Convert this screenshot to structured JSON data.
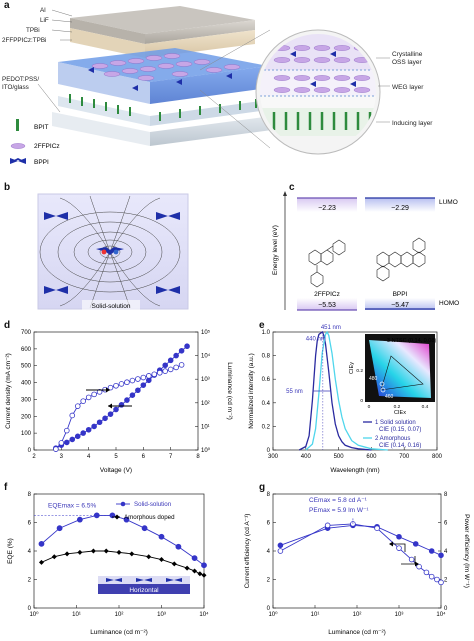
{
  "panels": {
    "a": {
      "letter": "a",
      "layers": [
        "Al",
        "LiF",
        "TPBi",
        "2FFPPICz:TPBi",
        "PEDOT:PSS/",
        "ITO/glass"
      ],
      "legend": [
        "BPIT",
        "2FFPICz",
        "BPPI"
      ],
      "zoom_labels": [
        "Crystalline",
        "OSS layer",
        "WEG layer",
        "Inducing layer"
      ]
    },
    "b": {
      "letter": "b",
      "label": "Solid-solution"
    },
    "c": {
      "letter": "c",
      "ylabel": "Energy level (eV)",
      "lumo_label": "LUMO",
      "homo_label": "HOMO",
      "left": {
        "lumo": "−2.23",
        "homo": "−5.53",
        "name": "2FFPICz"
      },
      "right": {
        "lumo": "−2.29",
        "homo": "−5.47",
        "name": "BPPI"
      }
    },
    "d": {
      "letter": "d"
    },
    "e": {
      "letter": "e"
    },
    "f": {
      "letter": "f"
    },
    "g": {
      "letter": "g"
    }
  },
  "chart_data": [
    {
      "id": "d",
      "type": "line",
      "xlabel": "Voltage (V)",
      "ylabel": "Current density (mA cm⁻²)",
      "y2label": "Luminance (cd m⁻²)",
      "xlim": [
        2,
        8
      ],
      "xticks": [
        "2",
        "3",
        "4",
        "5",
        "6",
        "7",
        "8"
      ],
      "ylim": [
        0,
        700
      ],
      "yticks": [
        "0",
        "100",
        "200",
        "300",
        "400",
        "500",
        "600",
        "700"
      ],
      "y2scale": "log",
      "y2lim": [
        1,
        100000
      ],
      "y2ticks": [
        "10⁰",
        "10¹",
        "10²",
        "10³",
        "10⁴",
        "10⁵"
      ],
      "series": [
        {
          "marker": "filled",
          "axis": "right",
          "x": [
            2.8,
            3.0,
            3.2,
            3.4,
            3.6,
            3.8,
            4.0,
            4.2,
            4.4,
            4.6,
            4.8,
            5.0,
            5.2,
            5.4,
            5.6,
            5.8,
            6.0,
            6.2,
            6.4,
            6.6,
            6.8,
            7.0,
            7.2,
            7.4,
            7.6
          ],
          "y": [
            1.2,
            1.6,
            2.1,
            2.8,
            3.8,
            5.2,
            7.2,
            10,
            15,
            22,
            33,
            52,
            82,
            130,
            210,
            340,
            560,
            900,
            1500,
            2400,
            3900,
            6300,
            10000,
            16000,
            25000
          ]
        },
        {
          "marker": "open",
          "axis": "left",
          "x": [
            2.8,
            3.0,
            3.2,
            3.4,
            3.6,
            3.8,
            4.0,
            4.2,
            4.4,
            4.6,
            4.8,
            5.0,
            5.2,
            5.4,
            5.6,
            5.8,
            6.0,
            6.2,
            6.4,
            6.6,
            6.8,
            7.0,
            7.2,
            7.4
          ],
          "y": [
            5,
            42,
            115,
            205,
            260,
            290,
            312,
            330,
            345,
            358,
            370,
            381,
            392,
            402,
            412,
            421,
            430,
            440,
            449,
            458,
            468,
            478,
            490,
            505
          ]
        }
      ]
    },
    {
      "id": "e",
      "type": "line",
      "xlabel": "Wavelength (nm)",
      "ylabel": "Normalized intensity (a.u.)",
      "xlim": [
        300,
        800
      ],
      "xticks": [
        "300",
        "400",
        "500",
        "600",
        "700",
        "800"
      ],
      "ylim": [
        0,
        1.0
      ],
      "yticks": [
        "0",
        "0.2",
        "0.4",
        "0.6",
        "0.8",
        "1.0"
      ],
      "annotations": [
        "451 nm",
        "440 nm",
        "55 nm"
      ],
      "series": [
        {
          "name": "1 Solid solution",
          "detail": "CIE (0.15, 0.07)",
          "x": [
            380,
            400,
            410,
            420,
            430,
            435,
            440,
            445,
            451,
            455,
            460,
            470,
            480,
            490,
            500,
            510,
            520,
            540,
            560,
            600
          ],
          "y": [
            0.0,
            0.03,
            0.12,
            0.42,
            0.8,
            0.93,
            0.98,
            0.99,
            1.0,
            0.97,
            0.9,
            0.66,
            0.4,
            0.22,
            0.12,
            0.07,
            0.04,
            0.02,
            0.01,
            0.0
          ]
        },
        {
          "name": "2 Amorphous",
          "detail": "CIE (0.14, 0.16)",
          "x": [
            400,
            420,
            430,
            440,
            450,
            460,
            465,
            470,
            480,
            490,
            500,
            510,
            520,
            540,
            560,
            600,
            650
          ],
          "y": [
            0.0,
            0.05,
            0.18,
            0.48,
            0.82,
            0.98,
            1.0,
            0.97,
            0.82,
            0.6,
            0.42,
            0.28,
            0.18,
            0.08,
            0.04,
            0.01,
            0.0
          ]
        }
      ],
      "inset": {
        "xlabel": "CIEx",
        "ylabel": "CIEy",
        "label": "3 NTSC (0.14, 0.08)",
        "ticks_x": [
          "0",
          "0.2",
          "0.4"
        ],
        "ticks_y": [
          "0",
          "0.2"
        ],
        "markers": [
          "480",
          "460"
        ]
      }
    },
    {
      "id": "f",
      "type": "line",
      "xlabel": "Luminance (cd m⁻²)",
      "ylabel": "EQE (%)",
      "xscale": "log",
      "xlim": [
        1,
        10000
      ],
      "xticks": [
        "10⁰",
        "10¹",
        "10²",
        "10³",
        "10⁴"
      ],
      "ylim": [
        0,
        8
      ],
      "yticks": [
        "0",
        "2",
        "4",
        "6",
        "8"
      ],
      "annotation": "EQEmax = 6.5%",
      "inset_label": "Horizontal",
      "series": [
        {
          "name": "Solid-solution",
          "marker": "circle",
          "x": [
            1.5,
            4,
            12,
            30,
            70,
            150,
            400,
            1000,
            2500,
            6000,
            10000
          ],
          "y": [
            4.5,
            5.6,
            6.2,
            6.5,
            6.5,
            6.2,
            5.6,
            5.0,
            4.3,
            3.5,
            3.0
          ]
        },
        {
          "name": "Amorphous doped",
          "marker": "diamond",
          "x": [
            1.5,
            3,
            6,
            12,
            25,
            50,
            100,
            200,
            500,
            1000,
            2000,
            4000,
            6000,
            8000,
            10000
          ],
          "y": [
            3.2,
            3.6,
            3.8,
            3.9,
            4.0,
            4.0,
            3.9,
            3.8,
            3.6,
            3.4,
            3.1,
            2.8,
            2.6,
            2.4,
            2.3
          ]
        }
      ]
    },
    {
      "id": "g",
      "type": "line",
      "xlabel": "Luminance (cd m⁻²)",
      "ylabel": "Current efficiency (cd A⁻¹)",
      "y2label": "Power efficiency (lm W⁻¹)",
      "xscale": "log",
      "xlim": [
        1,
        10000
      ],
      "xticks": [
        "10⁰",
        "10¹",
        "10²",
        "10³",
        "10⁴"
      ],
      "ylim": [
        0,
        8
      ],
      "yticks": [
        "0",
        "2",
        "4",
        "6",
        "8"
      ],
      "y2lim": [
        0,
        8
      ],
      "y2ticks": [
        "0",
        "2",
        "4",
        "6",
        "8"
      ],
      "annotations": [
        "CEmax = 5.8 cd A⁻¹",
        "PEmax = 5.9 lm W⁻¹"
      ],
      "series": [
        {
          "marker": "filled",
          "axis": "left",
          "x": [
            1.5,
            20,
            80,
            300,
            1000,
            2500,
            6000,
            10000
          ],
          "y": [
            4.4,
            5.6,
            5.8,
            5.7,
            5.0,
            4.5,
            4.0,
            3.7
          ]
        },
        {
          "marker": "open",
          "axis": "right",
          "x": [
            1.5,
            20,
            80,
            300,
            1000,
            2000,
            3000,
            4500,
            6000,
            8000,
            10000
          ],
          "y": [
            4.0,
            5.8,
            5.9,
            5.6,
            4.2,
            3.4,
            2.9,
            2.5,
            2.2,
            2.0,
            1.8
          ]
        }
      ]
    }
  ]
}
